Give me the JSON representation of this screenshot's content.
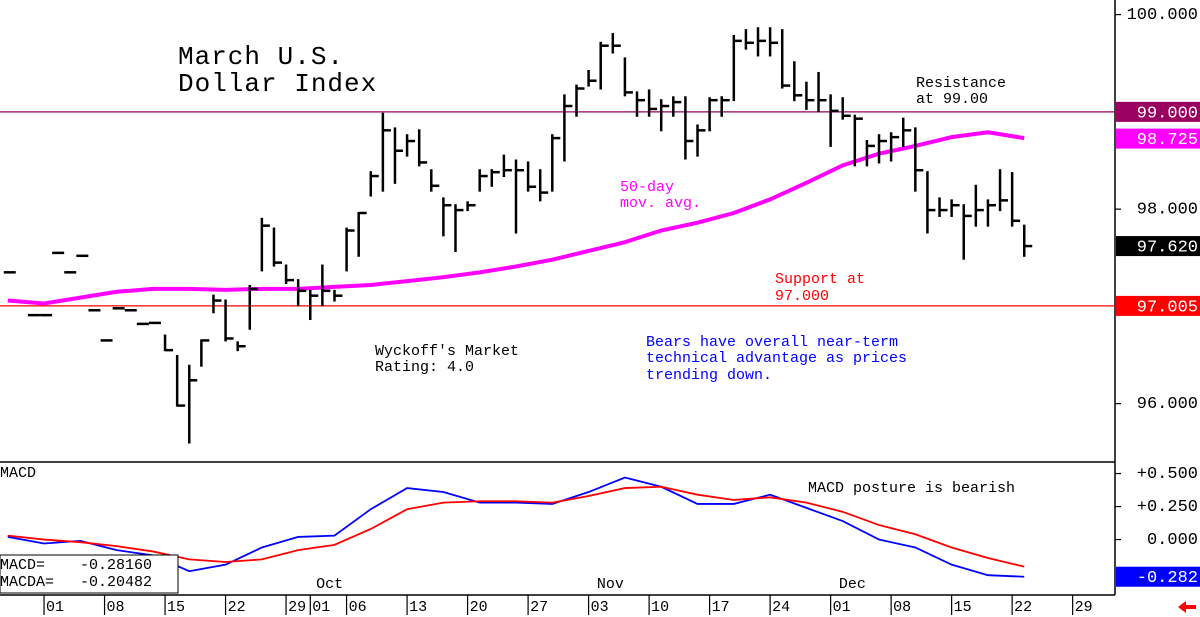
{
  "chart_data": [
    {
      "type": "ohlc",
      "title_lines": [
        "March U.S.",
        "Dollar Index"
      ],
      "color": "#000000",
      "x": [
        -3,
        -1,
        0,
        1,
        2,
        3,
        4,
        5,
        6,
        7,
        8,
        9,
        10,
        11,
        12,
        13,
        14,
        15,
        16,
        17,
        18,
        19,
        20,
        21,
        22,
        23,
        24,
        25,
        26,
        27,
        28,
        29,
        30,
        31,
        32,
        33,
        34,
        35,
        36,
        37,
        38,
        39,
        40,
        41,
        42,
        43,
        44,
        45,
        46,
        47,
        48,
        49,
        50,
        51,
        52,
        53,
        54,
        55,
        56,
        57,
        58,
        59,
        60,
        61,
        62,
        63,
        64,
        65,
        66,
        67,
        68,
        69,
        70,
        71,
        72,
        73,
        74,
        75,
        76,
        77,
        78,
        79,
        80,
        81
      ],
      "high": [
        97.35,
        96.91,
        96.91,
        97.55,
        97.35,
        97.52,
        96.96,
        96.65,
        96.98,
        96.96,
        96.82,
        96.83,
        96.7,
        96.49,
        96.39,
        96.65,
        97.11,
        97.06,
        96.63,
        97.21,
        97.9,
        97.8,
        97.42,
        97.27,
        97.16,
        97.42,
        97.16,
        97.8,
        97.96,
        98.38,
        98.98,
        98.83,
        98.76,
        98.81,
        98.4,
        98.11,
        98.04,
        98.07,
        98.4,
        98.4,
        98.55,
        98.5,
        98.48,
        98.4,
        98.76,
        99.17,
        99.27,
        99.42,
        99.71,
        99.8,
        99.55,
        99.2,
        99.22,
        99.12,
        99.15,
        99.15,
        98.86,
        99.14,
        99.15,
        99.78,
        99.84,
        99.86,
        99.86,
        99.84,
        99.51,
        99.3,
        99.4,
        99.17,
        99.14,
        98.96,
        98.7,
        98.76,
        98.78,
        98.93,
        98.83,
        98.38,
        98.11,
        98.09,
        98.04,
        98.24,
        98.09,
        98.4,
        98.37,
        97.83
      ],
      "low": [
        97.35,
        96.91,
        96.91,
        97.55,
        97.35,
        97.52,
        96.96,
        96.65,
        96.98,
        96.96,
        96.82,
        96.83,
        96.55,
        95.98,
        95.6,
        96.39,
        96.94,
        96.65,
        96.55,
        96.77,
        97.37,
        97.42,
        97.24,
        97.01,
        96.87,
        97.01,
        97.06,
        97.37,
        97.52,
        98.14,
        98.19,
        98.27,
        98.55,
        98.45,
        98.19,
        97.73,
        97.57,
        97.99,
        98.19,
        98.24,
        98.34,
        97.76,
        98.19,
        98.09,
        98.19,
        98.5,
        98.96,
        99.27,
        99.24,
        99.61,
        99.17,
        98.96,
        98.96,
        98.81,
        98.96,
        98.52,
        98.55,
        98.81,
        98.96,
        99.12,
        99.65,
        99.58,
        99.58,
        99.25,
        99.12,
        99.03,
        99.01,
        98.65,
        98.93,
        98.45,
        98.45,
        98.48,
        98.5,
        98.65,
        98.19,
        97.76,
        97.93,
        97.93,
        97.49,
        97.83,
        97.83,
        97.99,
        97.83,
        97.52
      ],
      "close": [
        97.35,
        96.91,
        96.91,
        97.55,
        97.35,
        97.52,
        96.96,
        96.65,
        96.98,
        96.96,
        96.82,
        96.83,
        96.55,
        95.98,
        96.24,
        96.65,
        97.06,
        96.67,
        96.59,
        97.18,
        97.83,
        97.45,
        97.27,
        97.16,
        97.11,
        97.16,
        97.11,
        97.78,
        97.96,
        98.34,
        98.81,
        98.6,
        98.7,
        98.48,
        98.24,
        98.04,
        97.99,
        98.04,
        98.34,
        98.38,
        98.4,
        98.4,
        98.23,
        98.17,
        98.73,
        99.06,
        99.24,
        99.32,
        99.68,
        99.68,
        99.2,
        99.12,
        99.03,
        99.06,
        99.1,
        98.7,
        98.81,
        99.12,
        99.12,
        99.73,
        99.71,
        99.73,
        99.71,
        99.27,
        99.17,
        99.12,
        99.12,
        99.01,
        98.96,
        98.93,
        98.65,
        98.7,
        98.74,
        98.81,
        98.4,
        97.99,
        97.99,
        98.04,
        97.93,
        97.99,
        98.04,
        98.09,
        97.88,
        97.62
      ],
      "moving_average": {
        "color": "#ff00ff",
        "x": [
          -3,
          0,
          3,
          6,
          9,
          12,
          15,
          18,
          21,
          24,
          27,
          30,
          33,
          36,
          39,
          42,
          45,
          48,
          51,
          54,
          57,
          60,
          63,
          66,
          69,
          72,
          75,
          78,
          81
        ],
        "values": [
          97.06,
          97.03,
          97.09,
          97.15,
          97.18,
          97.18,
          97.17,
          97.18,
          97.18,
          97.2,
          97.22,
          97.26,
          97.3,
          97.35,
          97.41,
          97.48,
          97.57,
          97.66,
          97.78,
          97.86,
          97.96,
          98.1,
          98.27,
          98.45,
          98.57,
          98.65,
          98.74,
          98.79,
          98.73
        ]
      },
      "xlim": [
        -3.64,
        88.5
      ],
      "ylim": [
        95.4,
        100.15
      ],
      "yticks": [
        {
          "value": 100,
          "label": "100.000"
        },
        {
          "value": 98,
          "label": "98.000"
        },
        {
          "value": 96,
          "label": "96.000"
        }
      ],
      "levels": [
        {
          "value": 99,
          "label": "99.000",
          "color": "#990060"
        },
        {
          "value": 97.005,
          "label": "97.005",
          "color": "#ff0000"
        }
      ],
      "price_tags": [
        {
          "value": 98.725,
          "label": "98.725",
          "color": "#ff00ff"
        },
        {
          "value": 97.62,
          "label": "97.620",
          "color": "#000000"
        }
      ],
      "annotations": [
        {
          "lines": [
            "Resistance",
            "at 99.00"
          ],
          "color": "#000000"
        },
        {
          "lines": [
            "50-day",
            "mov. avg."
          ],
          "color": "#ff00ff"
        },
        {
          "lines": [
            "Support at",
            "97.000"
          ],
          "color": "#ff0000"
        },
        {
          "lines": [
            "Wyckoff's Market",
            "Rating: 4.0"
          ],
          "color": "#000000"
        },
        {
          "lines": [
            "Bears have overall near-term",
            "technical advantage as prices",
            "trending down."
          ],
          "color": "#0000ff"
        }
      ]
    },
    {
      "type": "line",
      "panel_label": "MACD",
      "x": [
        -3,
        0,
        3,
        6,
        9,
        12,
        15,
        18,
        21,
        24,
        27,
        30,
        33,
        36,
        39,
        42,
        45,
        48,
        51,
        54,
        57,
        60,
        63,
        66,
        69,
        72,
        75,
        78,
        81
      ],
      "series": [
        {
          "name": "MACD=",
          "readout_label": "-0.28160",
          "color": "#0000ff",
          "values": [
            0.02,
            -0.03,
            -0.01,
            -0.08,
            -0.12,
            -0.24,
            -0.19,
            -0.06,
            0.02,
            0.03,
            0.23,
            0.39,
            0.36,
            0.28,
            0.28,
            0.27,
            0.36,
            0.47,
            0.4,
            0.27,
            0.27,
            0.34,
            0.24,
            0.14,
            0.0,
            -0.06,
            -0.19,
            -0.27,
            -0.2816
          ]
        },
        {
          "name": "MACDA=",
          "readout_label": "-0.20482",
          "color": "#ff0000",
          "values": [
            0.03,
            0.0,
            -0.02,
            -0.05,
            -0.09,
            -0.15,
            -0.17,
            -0.15,
            -0.08,
            -0.04,
            0.08,
            0.23,
            0.28,
            0.29,
            0.29,
            0.28,
            0.33,
            0.39,
            0.4,
            0.34,
            0.3,
            0.32,
            0.28,
            0.21,
            0.11,
            0.04,
            -0.06,
            -0.14,
            -0.20482
          ]
        }
      ],
      "xlim": [
        -3.64,
        88.5
      ],
      "ylim": [
        -0.42,
        0.58
      ],
      "yticks": [
        {
          "value": 0.5,
          "label": "+0.500"
        },
        {
          "value": 0.25,
          "label": "+0.250"
        },
        {
          "value": 0,
          "label": "0.000"
        }
      ],
      "price_tags": [
        {
          "value": -0.2816,
          "label": "-0.282",
          "color": "#0000ff"
        }
      ],
      "annotations": [
        {
          "lines": [
            "MACD posture is bearish"
          ],
          "color": "#000000"
        }
      ],
      "xticks": [
        {
          "value": 0,
          "label": "01"
        },
        {
          "value": 5,
          "label": "08"
        },
        {
          "value": 10,
          "label": "15"
        },
        {
          "value": 15,
          "label": "22"
        },
        {
          "value": 20,
          "label": "29"
        },
        {
          "value": 22,
          "label": "01"
        },
        {
          "value": 25,
          "label": "06"
        },
        {
          "value": 30,
          "label": "13"
        },
        {
          "value": 35,
          "label": "20"
        },
        {
          "value": 40,
          "label": "27"
        },
        {
          "value": 45,
          "label": "03"
        },
        {
          "value": 50,
          "label": "10"
        },
        {
          "value": 55,
          "label": "17"
        },
        {
          "value": 60,
          "label": "24"
        },
        {
          "value": 65,
          "label": "01"
        },
        {
          "value": 70,
          "label": "08"
        },
        {
          "value": 75,
          "label": "15"
        },
        {
          "value": 80,
          "label": "22"
        },
        {
          "value": 85,
          "label": "29"
        }
      ],
      "month_labels": [
        {
          "value": 23.6,
          "label": "Oct"
        },
        {
          "value": 46.8,
          "label": "Nov"
        },
        {
          "value": 66.8,
          "label": "Dec"
        }
      ]
    }
  ]
}
